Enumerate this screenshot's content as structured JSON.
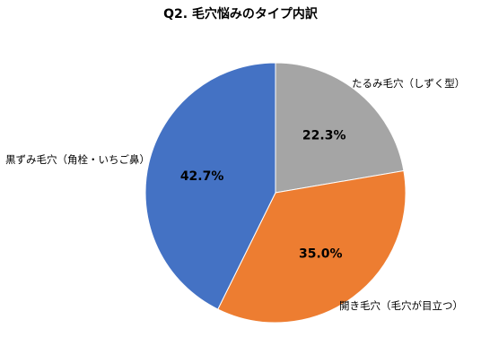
{
  "chart_data": {
    "type": "pie",
    "title": "Q2. 毛穴悩みのタイプ内訳",
    "start": "12 o'clock, clockwise",
    "legend": "none (category labels outside slices)",
    "slices": [
      {
        "label": "たるみ毛穴（しずく型）",
        "value": 22.3,
        "value_label": "22.3%",
        "color": "#A5A5A5"
      },
      {
        "label": "開き毛穴（毛穴が目立つ）",
        "value": 35.0,
        "value_label": "35.0%",
        "color": "#ED7D31"
      },
      {
        "label": "黒ずみ毛穴（角栓・いちご鼻）",
        "value": 42.7,
        "value_label": "42.7%",
        "color": "#4472C4"
      }
    ]
  }
}
